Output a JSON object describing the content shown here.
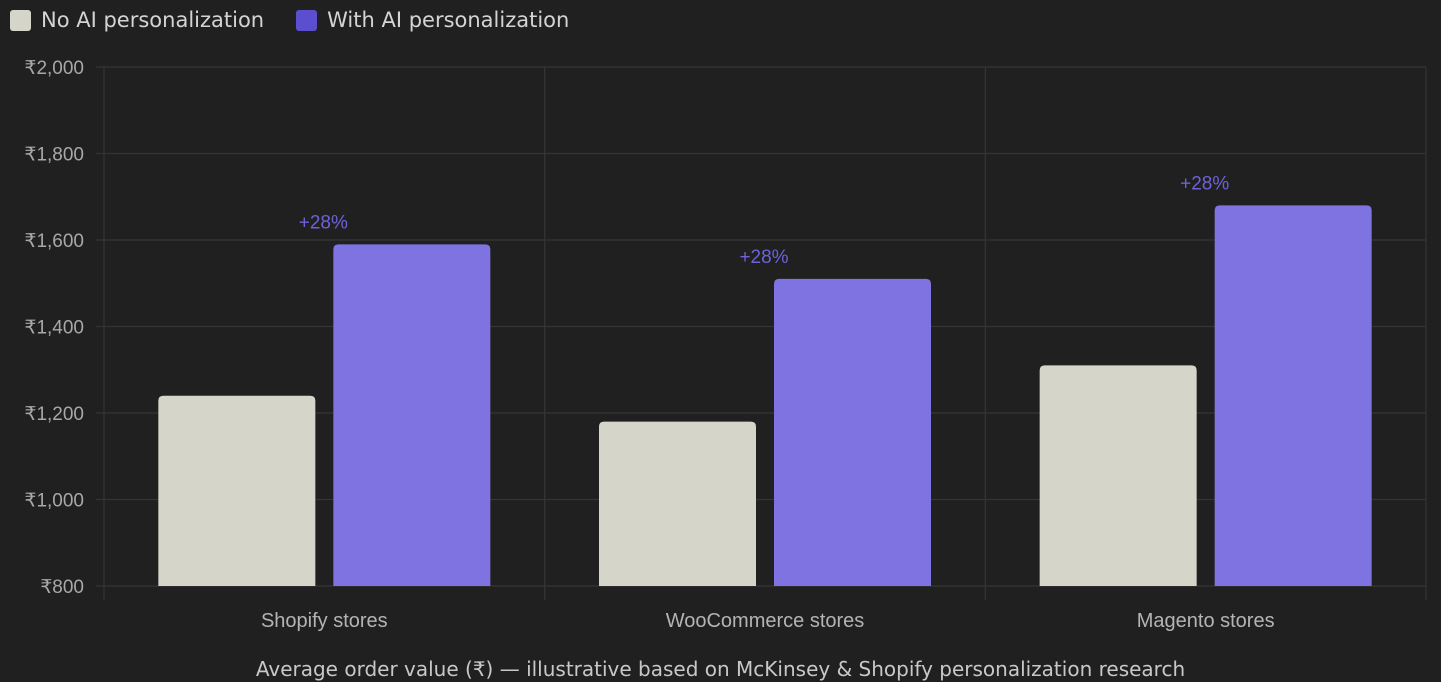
{
  "chart_data": {
    "type": "bar",
    "categories": [
      "Shopify stores",
      "WooCommerce stores",
      "Magento stores"
    ],
    "series": [
      {
        "name": "No AI personalization",
        "values": [
          1240,
          1180,
          1310
        ],
        "color": "#d6d5c9"
      },
      {
        "name": "With AI personalization",
        "values": [
          1590,
          1510,
          1680
        ],
        "color": "#7e73e0"
      }
    ],
    "bar_annotations": [
      "+28%",
      "+28%",
      "+28%"
    ],
    "annotation_color": "#6d62d8",
    "legend_swatch_colors": [
      "#d6d5c9",
      "#5b4fcf"
    ],
    "ylim": [
      800,
      2000
    ],
    "yticks": [
      800,
      1000,
      1200,
      1400,
      1600,
      1800,
      2000
    ],
    "ytick_labels": [
      "₹800",
      "₹1,000",
      "₹1,200",
      "₹1,400",
      "₹1,600",
      "₹1,800",
      "₹2,000"
    ],
    "grid": true,
    "legend_position": "top-left",
    "xlabel": "",
    "ylabel": "",
    "caption": "Average order value (₹) — illustrative based on McKinsey & Shopify personalization research"
  }
}
